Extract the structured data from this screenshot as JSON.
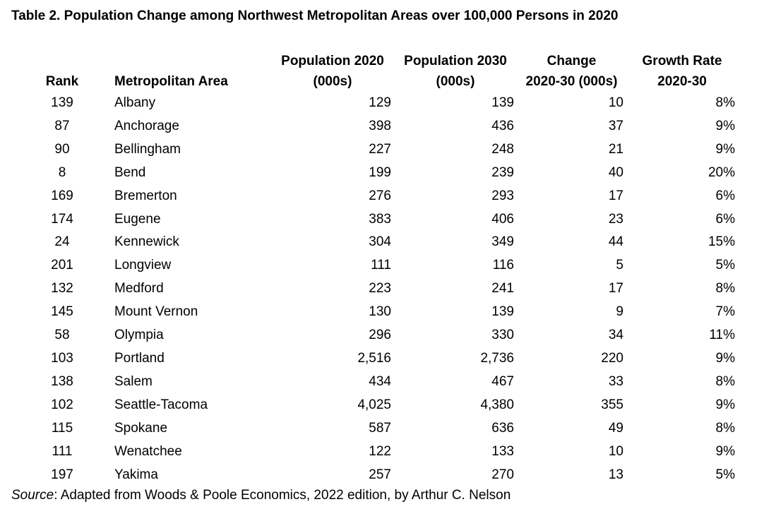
{
  "title": "Table 2. Population Change among Northwest Metropolitan Areas over 100,000 Persons in 2020",
  "headers": {
    "rank": "Rank",
    "area": "Metropolitan Area",
    "pop2020_line1": "Population 2020",
    "pop2020_line2": "(000s)",
    "pop2030_line1": "Population 2030",
    "pop2030_line2": "(000s)",
    "change_line1": "Change",
    "change_line2": "2020-30 (000s)",
    "rate_line1": "Growth Rate",
    "rate_line2": "2020-30"
  },
  "rows": [
    {
      "rank": "139",
      "area": "Albany",
      "pop2020": "129",
      "pop2030": "139",
      "change": "10",
      "rate": "8%"
    },
    {
      "rank": "87",
      "area": "Anchorage",
      "pop2020": "398",
      "pop2030": "436",
      "change": "37",
      "rate": "9%"
    },
    {
      "rank": "90",
      "area": "Bellingham",
      "pop2020": "227",
      "pop2030": "248",
      "change": "21",
      "rate": "9%"
    },
    {
      "rank": "8",
      "area": "Bend",
      "pop2020": "199",
      "pop2030": "239",
      "change": "40",
      "rate": "20%"
    },
    {
      "rank": "169",
      "area": "Bremerton",
      "pop2020": "276",
      "pop2030": "293",
      "change": "17",
      "rate": "6%"
    },
    {
      "rank": "174",
      "area": "Eugene",
      "pop2020": "383",
      "pop2030": "406",
      "change": "23",
      "rate": "6%"
    },
    {
      "rank": "24",
      "area": "Kennewick",
      "pop2020": "304",
      "pop2030": "349",
      "change": "44",
      "rate": "15%"
    },
    {
      "rank": "201",
      "area": "Longview",
      "pop2020": "111",
      "pop2030": "116",
      "change": "5",
      "rate": "5%"
    },
    {
      "rank": "132",
      "area": "Medford",
      "pop2020": "223",
      "pop2030": "241",
      "change": "17",
      "rate": "8%"
    },
    {
      "rank": "145",
      "area": "Mount Vernon",
      "pop2020": "130",
      "pop2030": "139",
      "change": "9",
      "rate": "7%"
    },
    {
      "rank": "58",
      "area": "Olympia",
      "pop2020": "296",
      "pop2030": "330",
      "change": "34",
      "rate": "11%"
    },
    {
      "rank": "103",
      "area": "Portland",
      "pop2020": "2,516",
      "pop2030": "2,736",
      "change": "220",
      "rate": "9%"
    },
    {
      "rank": "138",
      "area": "Salem",
      "pop2020": "434",
      "pop2030": "467",
      "change": "33",
      "rate": "8%"
    },
    {
      "rank": "102",
      "area": "Seattle-Tacoma",
      "pop2020": "4,025",
      "pop2030": "4,380",
      "change": "355",
      "rate": "9%"
    },
    {
      "rank": "115",
      "area": "Spokane",
      "pop2020": "587",
      "pop2030": "636",
      "change": "49",
      "rate": "8%"
    },
    {
      "rank": "111",
      "area": "Wenatchee",
      "pop2020": "122",
      "pop2030": "133",
      "change": "10",
      "rate": "9%"
    },
    {
      "rank": "197",
      "area": "Yakima",
      "pop2020": "257",
      "pop2030": "270",
      "change": "13",
      "rate": "5%"
    }
  ],
  "source": {
    "label": "Source",
    "text": ": Adapted from Woods & Poole Economics, 2022 edition, by Arthur C. Nelson"
  }
}
